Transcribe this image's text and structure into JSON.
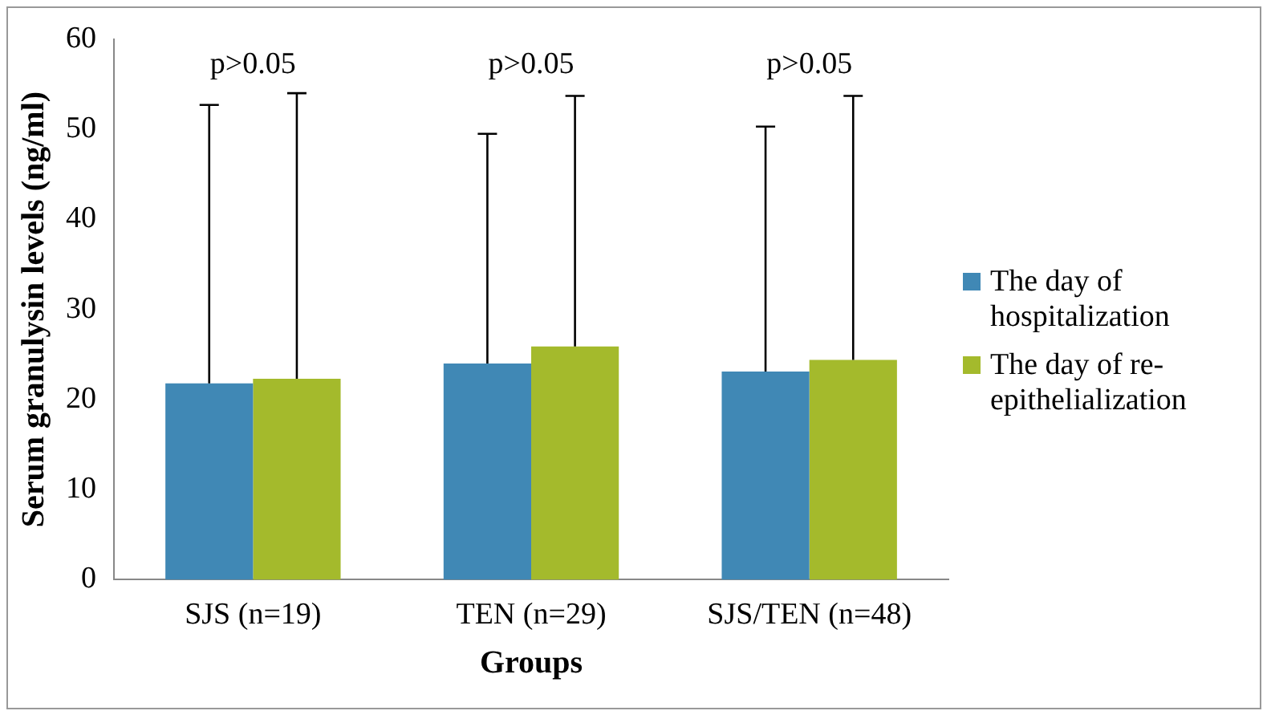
{
  "chart_data": {
    "type": "bar",
    "xlabel": "Groups",
    "ylabel": "Serum granulysin levels (ng/ml)",
    "categories": [
      "SJS (n=19)",
      "TEN (n=29)",
      "SJS/TEN (n=48)"
    ],
    "series": [
      {
        "name": "The day of hospitalization",
        "color": "#4088b5",
        "values": [
          21.8,
          24.0,
          23.1
        ],
        "errors": [
          [
            21.8,
            52.7
          ],
          [
            24.0,
            49.5
          ],
          [
            23.1,
            50.3
          ]
        ]
      },
      {
        "name": "The day of re-epithelialization",
        "color": "#a4ba2c",
        "values": [
          22.3,
          25.9,
          24.4
        ],
        "errors": [
          [
            22.3,
            54.0
          ],
          [
            25.9,
            53.7
          ],
          [
            24.4,
            53.7
          ]
        ]
      }
    ],
    "ylim": [
      0,
      60
    ],
    "yticks": [
      0,
      10,
      20,
      30,
      40,
      50,
      60
    ],
    "grid": false,
    "legend": "right",
    "annotations": [
      "p>0.05",
      "p>0.05",
      "p>0.05"
    ]
  }
}
